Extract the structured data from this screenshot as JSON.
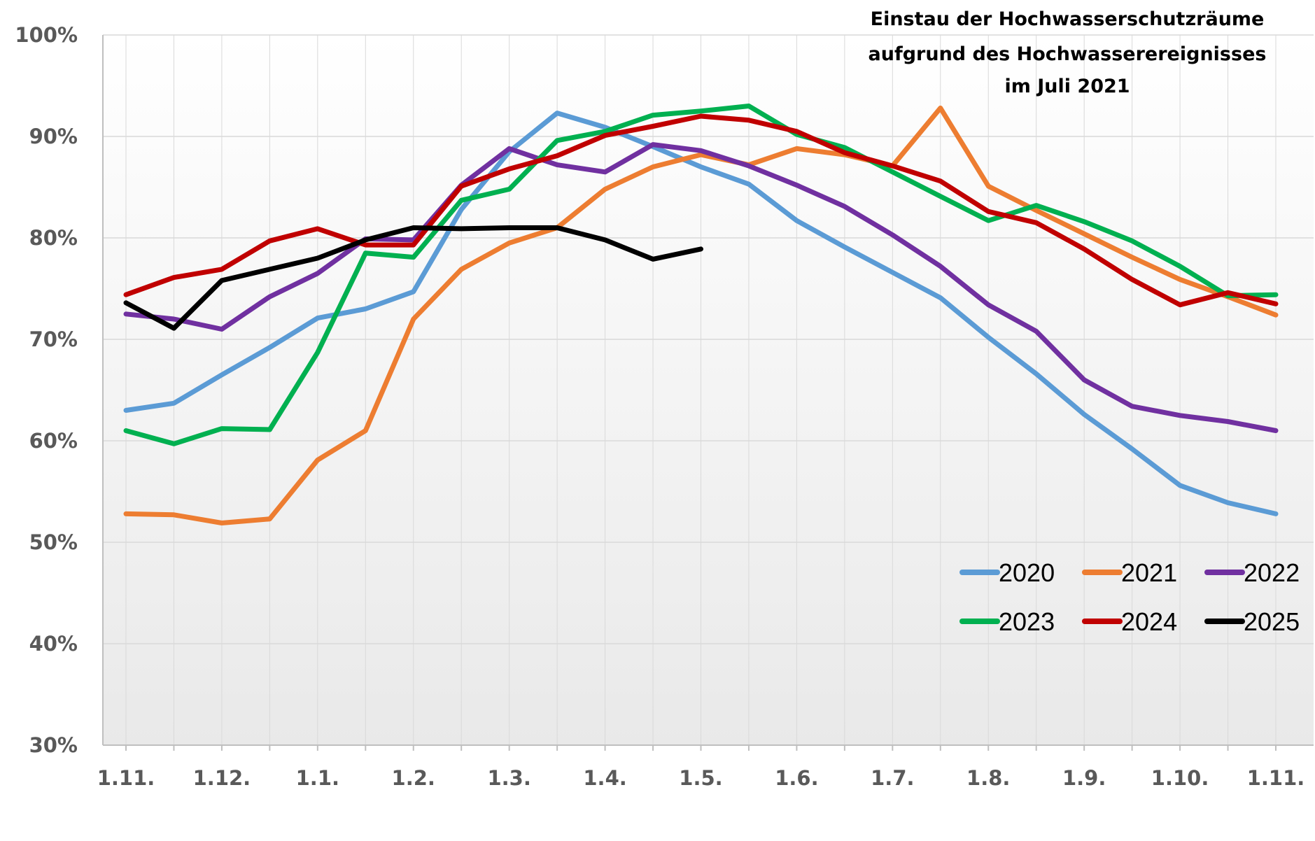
{
  "chart_data": {
    "type": "line",
    "title_lines": [
      "Einstau der Hochwasserschutzräume",
      "aufgrund des Hochwasserereignisses",
      "im Juli 2021"
    ],
    "xlabel": "",
    "ylabel": "",
    "x_tick_labels": [
      "1.11.",
      "1.12.",
      "1.1.",
      "1.2.",
      "1.3.",
      "1.4.",
      "1.5.",
      "1.6.",
      "1.7.",
      "1.8.",
      "1.9.",
      "1.10.",
      "1.11."
    ],
    "y_tick_labels": [
      "30%",
      "40%",
      "50%",
      "60%",
      "70%",
      "80%",
      "90%",
      "100%"
    ],
    "ylim": [
      30,
      100
    ],
    "x_count": 25,
    "grid": "horizontal",
    "legend_position": "bottom-right",
    "series": [
      {
        "name": "2020",
        "color": "#5b9bd5",
        "values": [
          63.0,
          63.7,
          66.5,
          69.2,
          72.1,
          73.0,
          74.7,
          82.8,
          88.5,
          92.3,
          90.9,
          89.0,
          87.0,
          85.3,
          81.7,
          79.1,
          76.6,
          74.1,
          70.2,
          66.6,
          62.6,
          59.2,
          55.6,
          53.9,
          52.8
        ]
      },
      {
        "name": "2021",
        "color": "#ed7d31",
        "values": [
          52.8,
          52.7,
          51.9,
          52.3,
          58.1,
          61.0,
          72.0,
          76.9,
          79.5,
          81.0,
          84.8,
          87.0,
          88.2,
          87.2,
          88.8,
          88.2,
          87.1,
          92.8,
          85.1,
          82.7,
          80.4,
          78.1,
          75.9,
          74.2,
          72.4
        ]
      },
      {
        "name": "2022",
        "color": "#7030a0",
        "values": [
          72.5,
          72.0,
          71.0,
          74.2,
          76.5,
          79.9,
          79.8,
          85.2,
          88.8,
          87.2,
          86.5,
          89.2,
          88.6,
          87.1,
          85.2,
          83.1,
          80.3,
          77.2,
          73.4,
          70.8,
          66.0,
          63.4,
          62.5,
          61.9,
          61.0
        ]
      },
      {
        "name": "2023",
        "color": "#00b050",
        "values": [
          61.0,
          59.7,
          61.2,
          61.1,
          68.7,
          78.5,
          78.1,
          83.7,
          84.8,
          89.6,
          90.5,
          92.1,
          92.5,
          93.0,
          90.2,
          88.9,
          86.5,
          84.1,
          81.7,
          83.2,
          81.6,
          79.7,
          77.2,
          74.3,
          74.4
        ]
      },
      {
        "name": "2024",
        "color": "#c00000",
        "values": [
          74.4,
          76.1,
          76.9,
          79.7,
          80.9,
          79.3,
          79.3,
          85.1,
          86.8,
          88.1,
          90.1,
          91.0,
          92.0,
          91.6,
          90.5,
          88.4,
          87.1,
          85.6,
          82.6,
          81.5,
          78.9,
          75.9,
          73.4,
          74.6,
          73.5
        ]
      },
      {
        "name": "2025",
        "color": "#000000",
        "values": [
          73.6,
          71.1,
          75.8,
          76.9,
          78.0,
          79.8,
          81.0,
          80.9,
          81.0,
          81.0,
          79.8,
          77.9,
          78.9
        ]
      }
    ]
  }
}
